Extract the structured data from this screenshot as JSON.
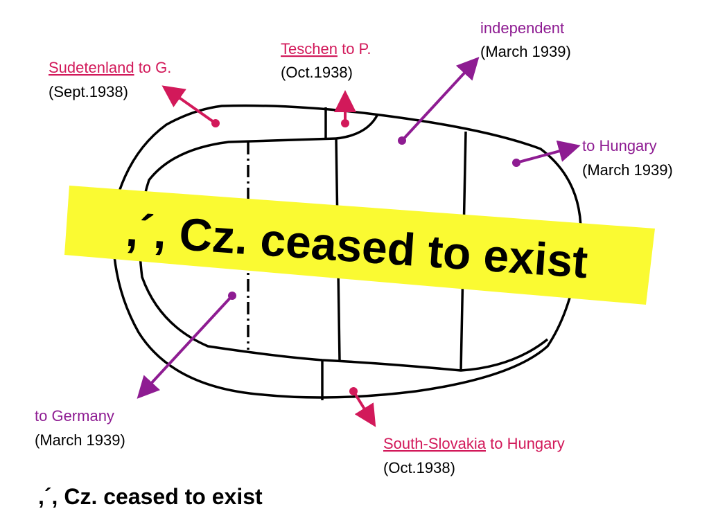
{
  "labels": [
    {
      "region": "Sudetenland",
      "action": "to G.",
      "date": "(Sept.1938)"
    },
    {
      "region": "Teschen",
      "action": "to P.",
      "date": "(Oct.1938)"
    },
    {
      "action": "independent",
      "date": "(March 1939)"
    },
    {
      "action": "to Hungary",
      "date": "(March 1939)"
    },
    {
      "action": "to Germany",
      "date": "(March 1939)"
    },
    {
      "region": "South-Slovakia",
      "action": "to Hungary",
      "date": "(Oct.1938)"
    }
  ],
  "banner": ",´, Cz. ceased to exist",
  "caption": ",´, Cz. ceased to exist"
}
